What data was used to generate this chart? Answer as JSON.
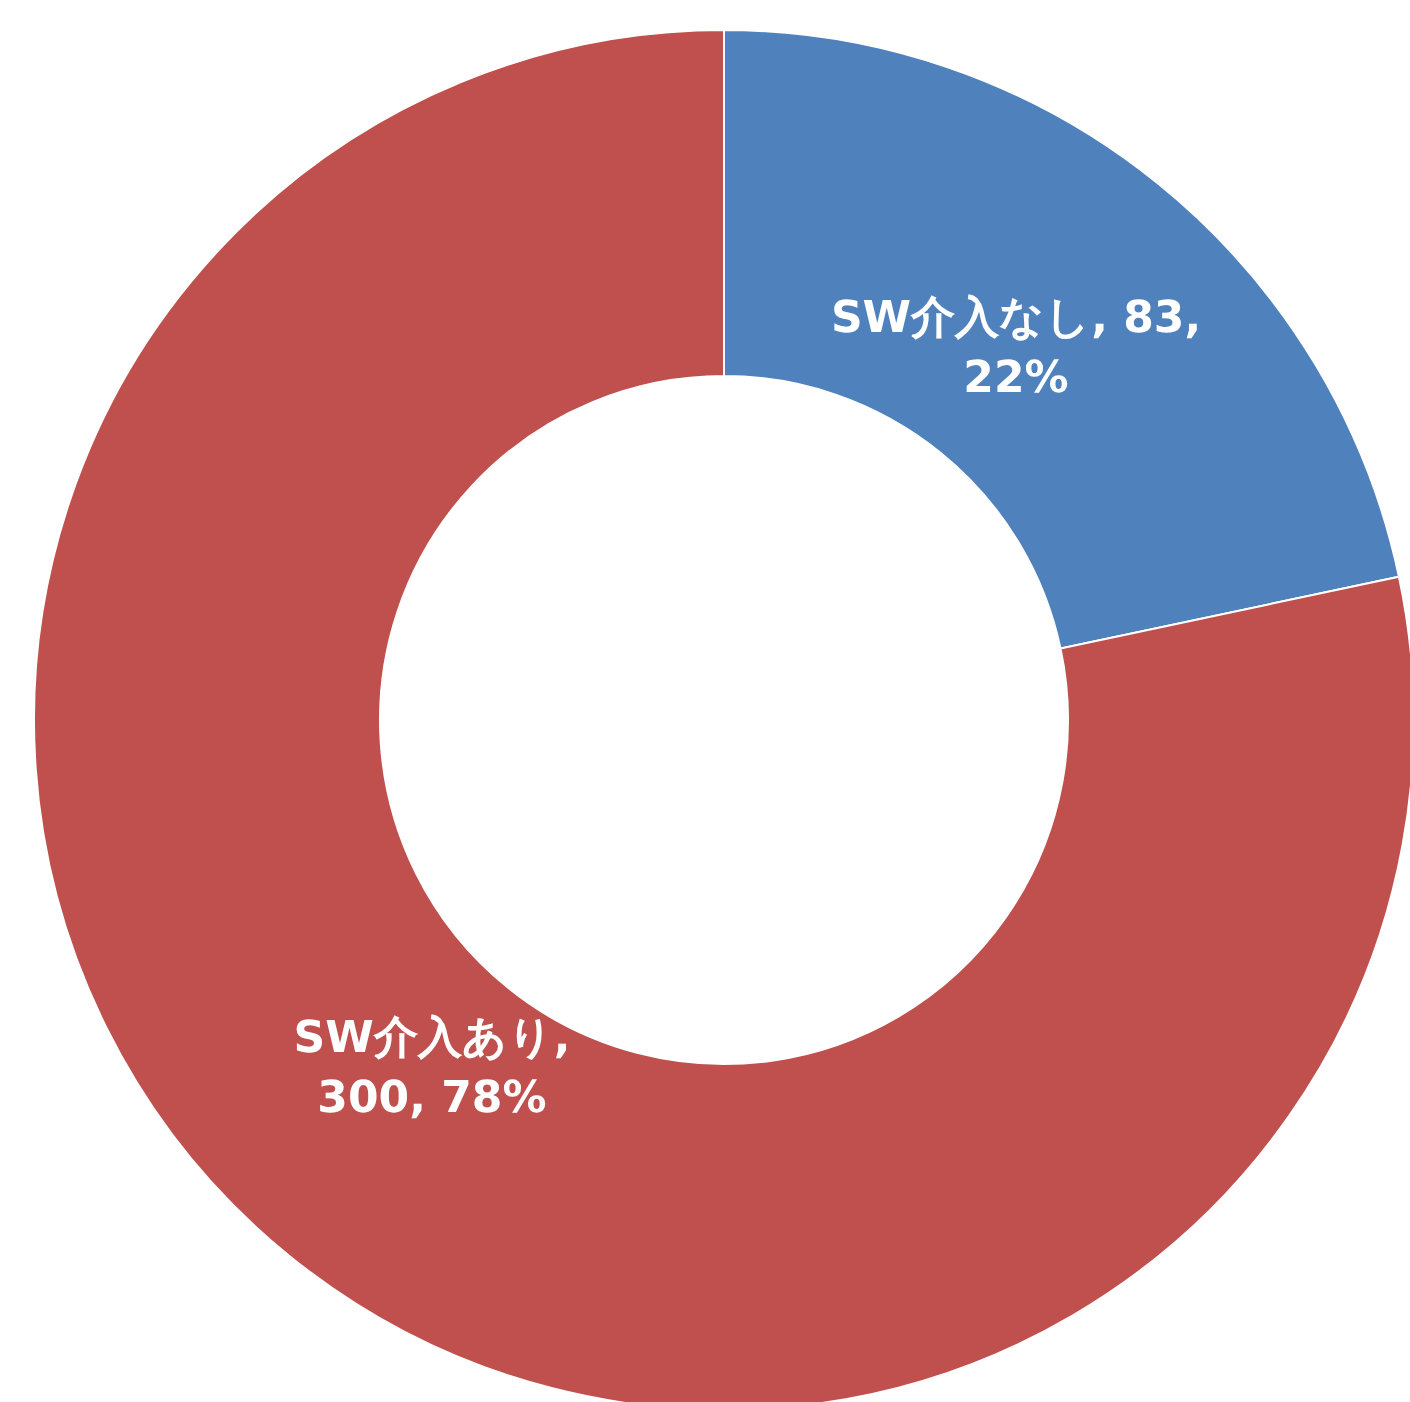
{
  "chart_data": {
    "type": "donut",
    "categories": [
      "SW介入なし",
      "SW介入あり"
    ],
    "values": [
      83,
      300
    ],
    "colors": [
      "#4f81bd",
      "#c0504d"
    ],
    "value_labels": [
      ", 83, 22%",
      ", 300, 78%"
    ]
  }
}
